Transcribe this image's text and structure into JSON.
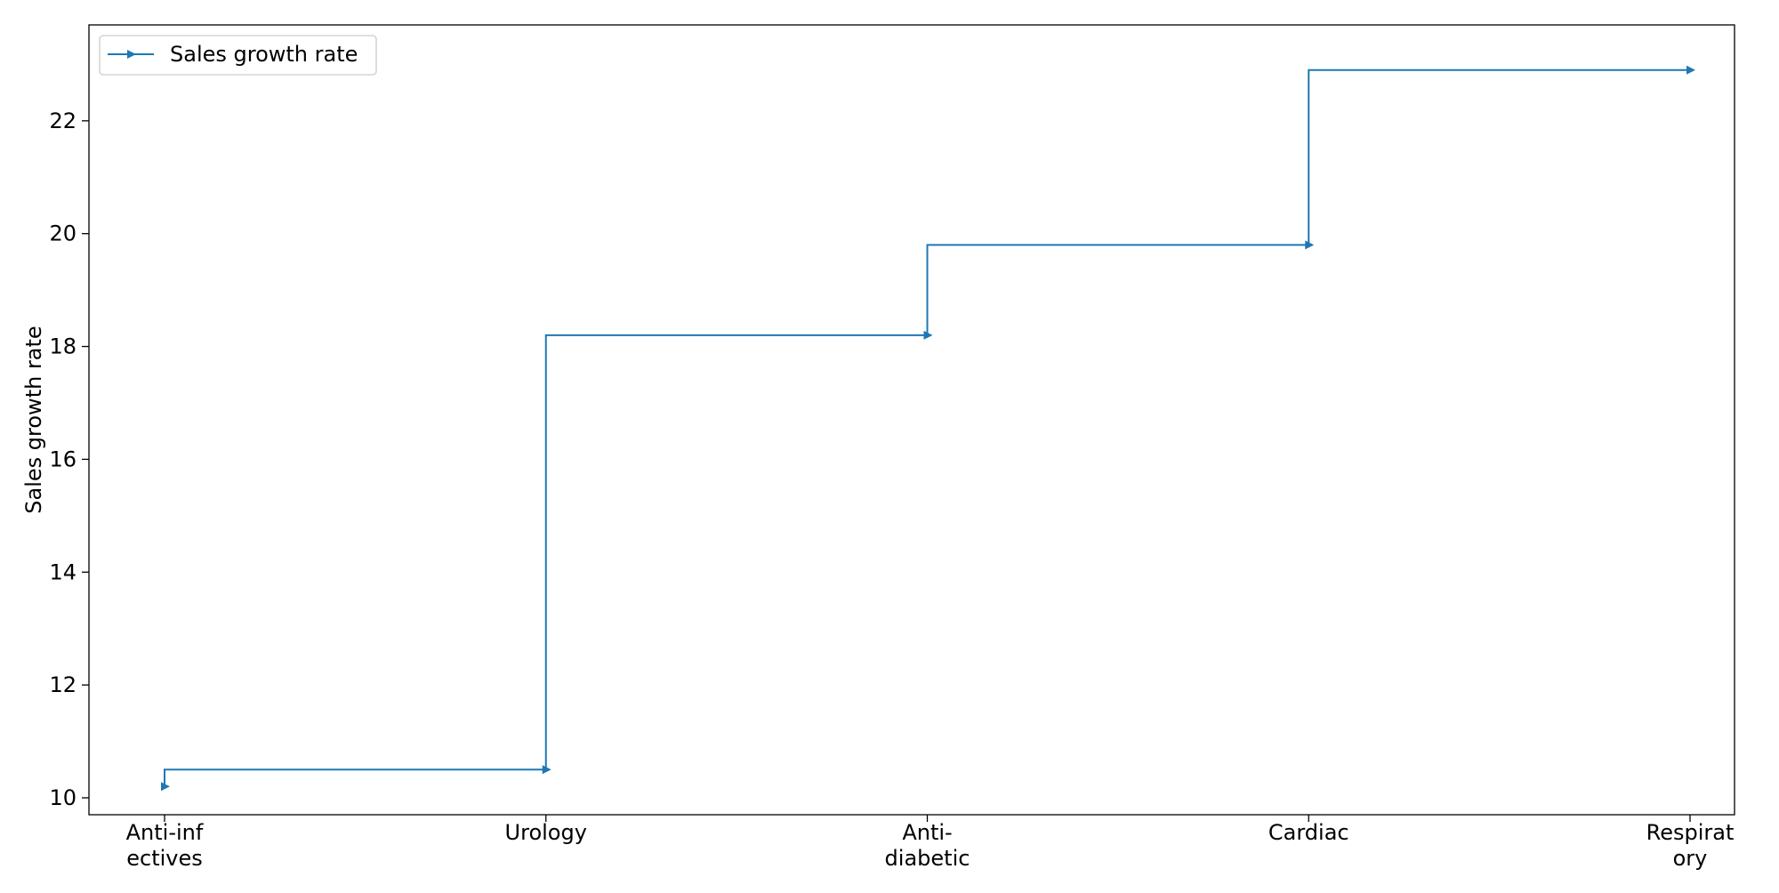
{
  "chart_data": {
    "type": "line",
    "drawstyle": "steps-pre",
    "categories": [
      "Anti-inf\nectives",
      "Urology",
      "Anti-\ndiabetic",
      "Cardiac",
      "Respirat\nory"
    ],
    "series": [
      {
        "name": "Sales growth rate",
        "values": [
          10.2,
          10.5,
          18.2,
          19.8,
          22.9
        ],
        "marker": "triangle-right",
        "color": "#1f77b4"
      }
    ],
    "title": "",
    "xlabel": "",
    "ylabel": "Sales growth rate",
    "ylim": [
      9.7,
      23.7
    ],
    "yticks": [
      10,
      12,
      14,
      16,
      18,
      20,
      22
    ],
    "grid": false,
    "legend_position": "top-left"
  }
}
